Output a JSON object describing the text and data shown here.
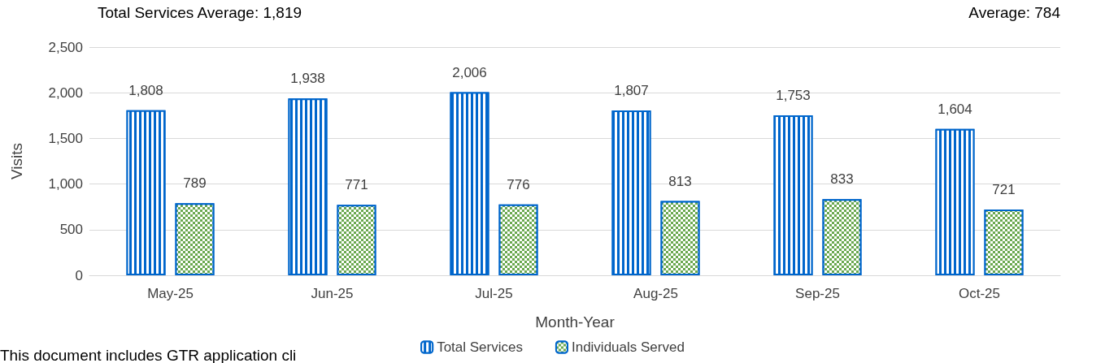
{
  "chart_data": {
    "type": "bar",
    "xlabel": "Month-Year",
    "ylabel": "Visits",
    "categories": [
      "May-25",
      "Jun-25",
      "Jul-25",
      "Aug-25",
      "Sep-25",
      "Oct-25"
    ],
    "series": [
      {
        "name": "Total Services",
        "color": "#0066cc",
        "values": [
          1808,
          1938,
          2006,
          1807,
          1753,
          1604
        ],
        "value_labels": [
          "1,808",
          "1,938",
          "2,006",
          "1,807",
          "1,753",
          "1,604"
        ]
      },
      {
        "name": "Individuals Served",
        "color": "#6aa84f",
        "values": [
          789,
          771,
          776,
          813,
          833,
          721
        ],
        "value_labels": [
          "789",
          "771",
          "776",
          "813",
          "833",
          "721"
        ]
      }
    ],
    "ylim": [
      0,
      2500
    ],
    "yticks": [
      0,
      500,
      {
        "value": 1000,
        "label": "1,000"
      },
      {
        "value": 1500,
        "label": "1,500"
      },
      {
        "value": 2000,
        "label": "2,000"
      },
      {
        "value": 2500,
        "label": "2,500"
      }
    ],
    "grid": "y",
    "legend": "bottom",
    "annotations": [
      "Total Services Average: 1,819",
      "Average: 784",
      "This document includes GTR application cli"
    ]
  }
}
